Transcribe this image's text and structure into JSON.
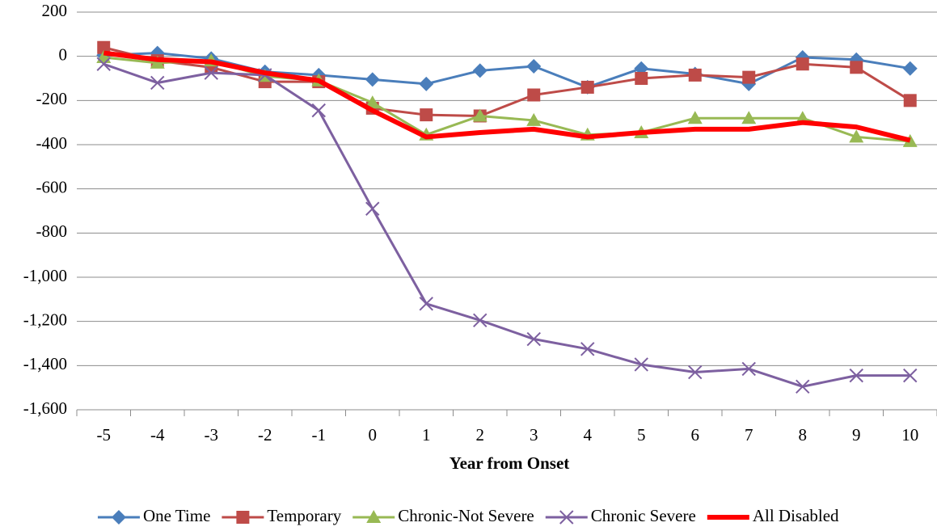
{
  "chart_data": {
    "type": "line",
    "x_label": "Year from Onset",
    "categories": [
      -5,
      -4,
      -3,
      -2,
      -1,
      0,
      1,
      2,
      3,
      4,
      5,
      6,
      7,
      8,
      9,
      10
    ],
    "series": [
      {
        "name": "One Time",
        "color": "#4a7ebb",
        "marker": "diamond",
        "line_width": 3,
        "values": [
          5,
          15,
          -10,
          -70,
          -85,
          -105,
          -125,
          -65,
          -45,
          -140,
          -55,
          -80,
          -125,
          -5,
          -15,
          -55
        ]
      },
      {
        "name": "Temporary",
        "color": "#be4b48",
        "marker": "square",
        "line_width": 3,
        "values": [
          40,
          -20,
          -50,
          -115,
          -115,
          -235,
          -265,
          -270,
          -175,
          -140,
          -100,
          -85,
          -95,
          -35,
          -50,
          -200
        ]
      },
      {
        "name": "Chronic-Not Severe",
        "color": "#98b954",
        "marker": "triangle",
        "line_width": 3,
        "values": [
          -5,
          -30,
          -20,
          -90,
          -110,
          -210,
          -355,
          -270,
          -290,
          -355,
          -345,
          -280,
          -280,
          -280,
          -365,
          -385
        ]
      },
      {
        "name": "Chronic Severe",
        "color": "#7d60a0",
        "marker": "x",
        "line_width": 3,
        "values": [
          -35,
          -120,
          -75,
          -85,
          -245,
          -690,
          -1120,
          -1195,
          -1280,
          -1325,
          -1395,
          -1430,
          -1415,
          -1495,
          -1445,
          -1445
        ]
      },
      {
        "name": "All Disabled",
        "color": "#ff0000",
        "marker": "none",
        "line_width": 6,
        "values": [
          15,
          -15,
          -25,
          -75,
          -110,
          -245,
          -365,
          -345,
          -330,
          -365,
          -345,
          -330,
          -330,
          -300,
          -320,
          -380
        ]
      }
    ],
    "ylim": [
      -1600,
      200
    ],
    "yticks": [
      200,
      0,
      -200,
      -400,
      -600,
      -800,
      {
        "value": -1000,
        "label": "-1,000"
      },
      {
        "value": -1200,
        "label": "-1,200"
      },
      {
        "value": -1400,
        "label": "-1,400"
      },
      {
        "value": -1600,
        "label": "-1,600"
      }
    ],
    "grid": true,
    "legend": "bottom"
  }
}
